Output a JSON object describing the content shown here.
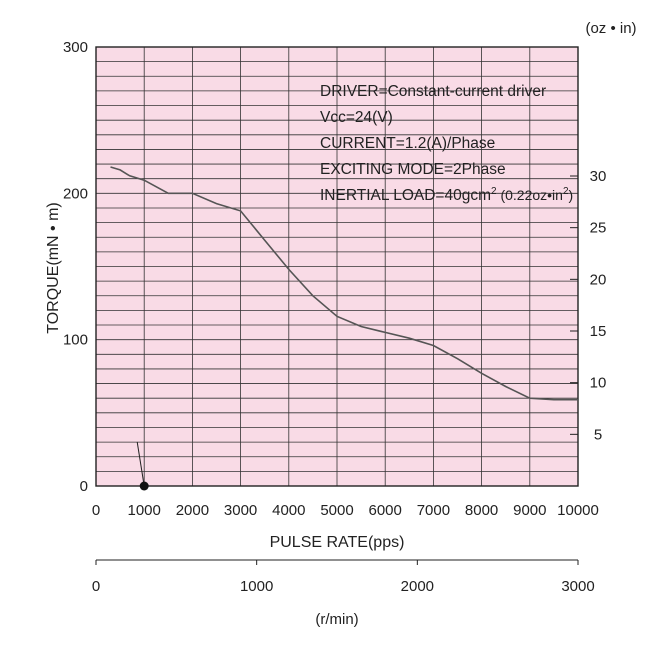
{
  "chart_data": {
    "type": "line",
    "x": [
      300,
      500,
      700,
      1000,
      1500,
      2000,
      2500,
      3000,
      3500,
      4000,
      4500,
      5000,
      5500,
      6000,
      6500,
      7000,
      7500,
      8000,
      8500,
      9000,
      9500,
      10000
    ],
    "series": [
      {
        "values": [
          218,
          216,
          212,
          209,
          200,
          200,
          193,
          188,
          168,
          148,
          130,
          116,
          109,
          105,
          101,
          96,
          87,
          77,
          68,
          60,
          59,
          59
        ]
      }
    ],
    "xlabel": "PULSE RATE(pps)",
    "ylabel": "TORQUE(mN • m)",
    "xlim": [
      0,
      10000
    ],
    "ylim": [
      0,
      300
    ],
    "x_ticks": [
      "0",
      "1000",
      "2000",
      "3000",
      "4000",
      "5000",
      "6000",
      "7000",
      "8000",
      "9000",
      "10000"
    ],
    "y_ticks": [
      "0",
      "100",
      "200",
      "300"
    ],
    "y2_unit": "(oz • in)",
    "y2_ticks": [
      "5",
      "10",
      "15",
      "20",
      "25",
      "30"
    ],
    "y2_values": [
      5,
      10,
      15,
      20,
      25,
      30
    ],
    "x2_label": "(r/min)",
    "x2_ticks": [
      "0",
      "1000",
      "2000",
      "3000"
    ],
    "x2_lim": [
      0,
      3000
    ],
    "self_start_marker_x": 1000,
    "grid": true,
    "plot_background": "#f9dbe6",
    "line_color": "#555555",
    "annotations": [
      "DRIVER=Constant-current driver",
      "Vcc=24(V)",
      "CURRENT=1.2(A)/Phase",
      "EXCITING MODE=2Phase"
    ],
    "inertial_load": {
      "main": "INERTIAL LOAD=40gcm",
      "mid": " (0.22oz•in",
      "end": ")"
    }
  }
}
